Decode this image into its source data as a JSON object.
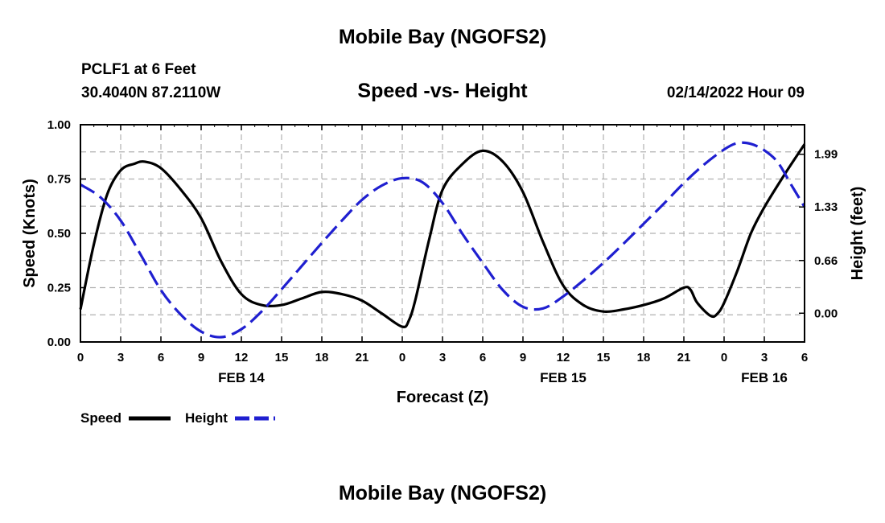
{
  "header": {
    "title": "Mobile Bay (NGOFS2)",
    "station": "PCLF1 at 6 Feet",
    "coords": "30.4040N  87.2110W",
    "subtitle": "Speed -vs- Height",
    "datetime": "02/14/2022 Hour 09"
  },
  "footer": {
    "title": "Mobile Bay (NGOFS2)"
  },
  "legend": {
    "speed": "Speed",
    "height": "Height"
  },
  "colors": {
    "speed": "#000000",
    "height": "#1f1fd0",
    "grid": "#b0b0b0"
  },
  "chart_data": {
    "type": "line",
    "title": "Speed -vs- Height",
    "xlabel": "Forecast (Z)",
    "ylabel": "Speed (Knots)",
    "y2label": "Height (feet)",
    "xlim": [
      0,
      54
    ],
    "ylim": [
      0,
      1.0
    ],
    "y2lim": [
      -0.36,
      2.36
    ],
    "x_ticks": [
      {
        "x": 0,
        "label": "0"
      },
      {
        "x": 3,
        "label": "3"
      },
      {
        "x": 6,
        "label": "6"
      },
      {
        "x": 9,
        "label": "9"
      },
      {
        "x": 12,
        "label": "12"
      },
      {
        "x": 15,
        "label": "15"
      },
      {
        "x": 18,
        "label": "18"
      },
      {
        "x": 21,
        "label": "21"
      },
      {
        "x": 24,
        "label": "0"
      },
      {
        "x": 27,
        "label": "3"
      },
      {
        "x": 30,
        "label": "6"
      },
      {
        "x": 33,
        "label": "9"
      },
      {
        "x": 36,
        "label": "12"
      },
      {
        "x": 39,
        "label": "15"
      },
      {
        "x": 42,
        "label": "18"
      },
      {
        "x": 45,
        "label": "21"
      },
      {
        "x": 48,
        "label": "0"
      },
      {
        "x": 51,
        "label": "3"
      },
      {
        "x": 54,
        "label": "6"
      }
    ],
    "date_labels": [
      {
        "x": 12,
        "label": "FEB 14"
      },
      {
        "x": 36,
        "label": "FEB 15"
      },
      {
        "x": 51,
        "label": "FEB 16"
      }
    ],
    "y_ticks": [
      "0.00",
      "0.25",
      "0.50",
      "0.75",
      "1.00"
    ],
    "y2_ticks": [
      "0.00",
      "0.66",
      "1.33",
      "1.99"
    ],
    "grid": true,
    "legend_position": "bottom-left",
    "series": [
      {
        "name": "Speed",
        "axis": "left",
        "style": "solid",
        "x": [
          0,
          1,
          2,
          3,
          4,
          4.8,
          6,
          7.5,
          9,
          10.5,
          12,
          13.5,
          15,
          16.5,
          18,
          19.5,
          21,
          22.5,
          24,
          24.5,
          25,
          26,
          27,
          28.5,
          30,
          31.5,
          33,
          34.5,
          36,
          37.5,
          39,
          40.5,
          42,
          43.5,
          45,
          45.5,
          46,
          47,
          47.5,
          48,
          49,
          50,
          51,
          52.5,
          54
        ],
        "values": [
          0.15,
          0.45,
          0.68,
          0.79,
          0.82,
          0.83,
          0.8,
          0.7,
          0.57,
          0.37,
          0.22,
          0.17,
          0.17,
          0.2,
          0.23,
          0.22,
          0.19,
          0.13,
          0.07,
          0.1,
          0.2,
          0.47,
          0.7,
          0.82,
          0.88,
          0.83,
          0.69,
          0.46,
          0.26,
          0.17,
          0.14,
          0.15,
          0.17,
          0.2,
          0.25,
          0.24,
          0.18,
          0.12,
          0.13,
          0.18,
          0.33,
          0.5,
          0.62,
          0.77,
          0.91
        ]
      },
      {
        "name": "Height",
        "axis": "right",
        "style": "dashed",
        "x": [
          0,
          1.5,
          3,
          4.5,
          6,
          7.5,
          9,
          10.5,
          12,
          13.5,
          15,
          16.5,
          18,
          19.5,
          21,
          22.5,
          24,
          25.5,
          27,
          28.5,
          30,
          31.5,
          33,
          34.5,
          36,
          37.5,
          39,
          40.5,
          42,
          43.5,
          45,
          46.5,
          48,
          49,
          50,
          51,
          52,
          53,
          54
        ],
        "values": [
          1.61,
          1.45,
          1.16,
          0.73,
          0.29,
          -0.02,
          -0.23,
          -0.3,
          -0.2,
          0.02,
          0.3,
          0.59,
          0.88,
          1.16,
          1.42,
          1.6,
          1.69,
          1.64,
          1.38,
          0.99,
          0.63,
          0.29,
          0.08,
          0.06,
          0.21,
          0.41,
          0.63,
          0.87,
          1.12,
          1.37,
          1.63,
          1.86,
          2.05,
          2.13,
          2.12,
          2.04,
          1.89,
          1.61,
          1.33
        ]
      }
    ]
  }
}
